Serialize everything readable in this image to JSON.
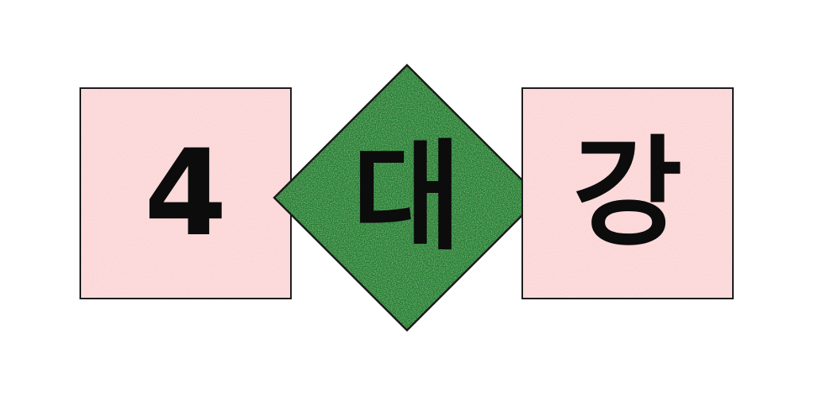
{
  "tiles": {
    "left": {
      "text": "4"
    },
    "center": {
      "text": "대"
    },
    "right": {
      "text": "강"
    }
  },
  "colors": {
    "tile_fill": "#fbd3d4",
    "diamond_fill": "#1f7a2a",
    "outline": "#1a1a1a",
    "glyph": "#0c0c0c"
  }
}
